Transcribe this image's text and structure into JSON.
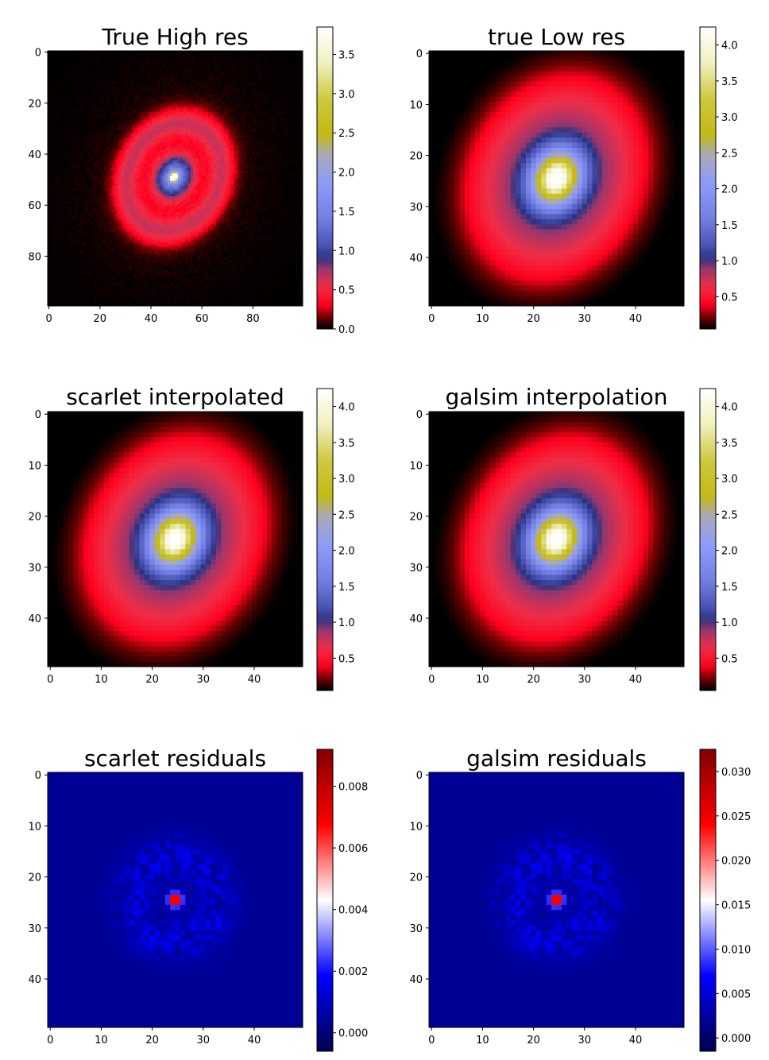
{
  "chart_data": [
    {
      "type": "heatmap",
      "title": "True High res",
      "colormap": "gist_stern",
      "grid_size": [
        100,
        100
      ],
      "xlim": [
        -0.5,
        99.5
      ],
      "ylim": [
        99.5,
        -0.5
      ],
      "xticks": [
        "0",
        "20",
        "40",
        "60",
        "80"
      ],
      "yticks": [
        "0",
        "20",
        "40",
        "60",
        "80"
      ],
      "colorbar": {
        "range": [
          0.0,
          3.85
        ],
        "ticks": [
          "0.0",
          "0.5",
          "1.0",
          "1.5",
          "2.0",
          "2.5",
          "3.0",
          "3.5"
        ]
      },
      "features": {
        "peak_at": [
          49,
          49
        ],
        "peak_value": 3.85
      }
    },
    {
      "type": "heatmap",
      "title": "true Low res",
      "colormap": "gist_stern",
      "grid_size": [
        50,
        50
      ],
      "xlim": [
        -0.5,
        49.5
      ],
      "ylim": [
        49.5,
        -0.5
      ],
      "xticks": [
        "0",
        "10",
        "20",
        "30",
        "40"
      ],
      "yticks": [
        "0",
        "10",
        "20",
        "30",
        "40"
      ],
      "colorbar": {
        "range": [
          0.05,
          4.25
        ],
        "ticks": [
          "0.5",
          "1.0",
          "1.5",
          "2.0",
          "2.5",
          "3.0",
          "3.5",
          "4.0"
        ]
      },
      "features": {
        "peak_at": [
          24,
          24
        ],
        "peak_value": 4.25
      }
    },
    {
      "type": "heatmap",
      "title": "scarlet interpolated",
      "colormap": "gist_stern",
      "grid_size": [
        50,
        50
      ],
      "xlim": [
        -0.5,
        49.5
      ],
      "ylim": [
        49.5,
        -0.5
      ],
      "xticks": [
        "0",
        "10",
        "20",
        "30",
        "40"
      ],
      "yticks": [
        "0",
        "10",
        "20",
        "30",
        "40"
      ],
      "colorbar": {
        "range": [
          0.05,
          4.25
        ],
        "ticks": [
          "0.5",
          "1.0",
          "1.5",
          "2.0",
          "2.5",
          "3.0",
          "3.5",
          "4.0"
        ]
      },
      "features": {
        "peak_at": [
          24,
          24
        ],
        "peak_value": 4.25
      }
    },
    {
      "type": "heatmap",
      "title": "galsim interpolation",
      "colormap": "gist_stern",
      "grid_size": [
        50,
        50
      ],
      "xlim": [
        -0.5,
        49.5
      ],
      "ylim": [
        49.5,
        -0.5
      ],
      "xticks": [
        "0",
        "10",
        "20",
        "30",
        "40"
      ],
      "yticks": [
        "0",
        "10",
        "20",
        "30",
        "40"
      ],
      "colorbar": {
        "range": [
          0.05,
          4.25
        ],
        "ticks": [
          "0.5",
          "1.0",
          "1.5",
          "2.0",
          "2.5",
          "3.0",
          "3.5",
          "4.0"
        ]
      },
      "features": {
        "peak_at": [
          24,
          24
        ],
        "peak_value": 4.25
      }
    },
    {
      "type": "heatmap",
      "title": "scarlet residuals",
      "colormap": "seismic",
      "grid_size": [
        50,
        50
      ],
      "xlim": [
        -0.5,
        49.5
      ],
      "ylim": [
        49.5,
        -0.5
      ],
      "xticks": [
        "0",
        "10",
        "20",
        "30",
        "40"
      ],
      "yticks": [
        "0",
        "10",
        "20",
        "30",
        "40"
      ],
      "colorbar": {
        "range": [
          -0.0006,
          0.0092
        ],
        "ticks": [
          "0.000",
          "0.002",
          "0.004",
          "0.006",
          "0.008"
        ]
      },
      "features": {
        "peak_at": [
          24,
          24
        ],
        "peak_value": 0.0092
      }
    },
    {
      "type": "heatmap",
      "title": "galsim residuals",
      "colormap": "seismic",
      "grid_size": [
        50,
        50
      ],
      "xlim": [
        -0.5,
        49.5
      ],
      "ylim": [
        49.5,
        -0.5
      ],
      "xticks": [
        "0",
        "10",
        "20",
        "30",
        "40"
      ],
      "yticks": [
        "0",
        "10",
        "20",
        "30",
        "40"
      ],
      "colorbar": {
        "range": [
          -0.0015,
          0.0325
        ],
        "ticks": [
          "0.000",
          "0.005",
          "0.010",
          "0.015",
          "0.020",
          "0.025",
          "0.030"
        ]
      },
      "features": {
        "peak_at": [
          24,
          24
        ],
        "peak_value": 0.0325
      }
    }
  ]
}
